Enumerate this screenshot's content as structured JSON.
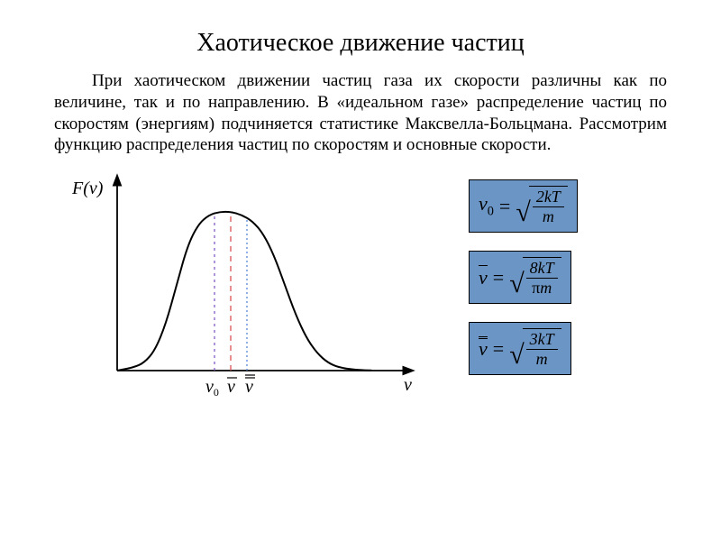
{
  "title": "Хаотическое движение частиц",
  "paragraph": "При хаотическом движении частиц газа их скорости различны как по величине, так и по направлению. В «идеальном газе» распределение частиц по скоростям (энергиям) подчиняется статистике Максвелла-Больцмана. Рассмотрим функцию распределения частиц по скоростям и основные скорости.",
  "chart": {
    "type": "line",
    "y_axis_label": "F(v)",
    "x_axis_label": "v",
    "xlim": [
      0,
      10
    ],
    "ylim": [
      0,
      1.1
    ],
    "axis_color": "#000000",
    "axis_width": 1.8,
    "curve_color": "#000000",
    "curve_width": 2,
    "curve_points": [
      [
        0.0,
        0.0
      ],
      [
        0.6,
        0.02
      ],
      [
        1.0,
        0.05
      ],
      [
        1.4,
        0.13
      ],
      [
        1.8,
        0.3
      ],
      [
        2.2,
        0.55
      ],
      [
        2.6,
        0.8
      ],
      [
        3.0,
        0.94
      ],
      [
        3.4,
        1.0
      ],
      [
        3.8,
        1.02
      ],
      [
        4.2,
        1.02
      ],
      [
        4.6,
        1.0
      ],
      [
        5.0,
        0.96
      ],
      [
        5.4,
        0.88
      ],
      [
        5.8,
        0.74
      ],
      [
        6.2,
        0.55
      ],
      [
        6.6,
        0.36
      ],
      [
        7.0,
        0.21
      ],
      [
        7.4,
        0.11
      ],
      [
        7.8,
        0.05
      ],
      [
        8.2,
        0.02
      ],
      [
        8.8,
        0.005
      ],
      [
        9.4,
        0.001
      ]
    ],
    "vlines": [
      {
        "x": 3.6,
        "label": "v0",
        "label_style": "sub",
        "color": "#7a4fbf",
        "dash": "3,4"
      },
      {
        "x": 4.2,
        "label": "v_bar",
        "label_style": "bar1",
        "color": "#d94545",
        "dash": "6,5"
      },
      {
        "x": 4.8,
        "label": "v_bar2",
        "label_style": "bar2",
        "color": "#4a7fd6",
        "dash": "2,3"
      }
    ],
    "label_fontsize": 20,
    "label_color": "#000000",
    "background": "#ffffff"
  },
  "formulas": {
    "box_bg": "#6b95c4",
    "box_border": "#000000",
    "font_size": 22,
    "items": [
      {
        "lhs_html": "<span class='ital'>v</span><span class='sub'>0</span>",
        "num": "2<span class='ital'>kT</span>",
        "den": "<span class='ital'>m</span>"
      },
      {
        "lhs_html": "<span class='bar1'><span class='ital'>v</span></span>",
        "num": "8<span class='ital'>kT</span>",
        "den": "<span class='rom'>π</span><span class='ital'>m</span>"
      },
      {
        "lhs_html": "<span class='bar2'><span class='ital'>v</span></span>",
        "num": "3<span class='ital'>kT</span>",
        "den": "<span class='ital'>m</span>"
      }
    ]
  }
}
